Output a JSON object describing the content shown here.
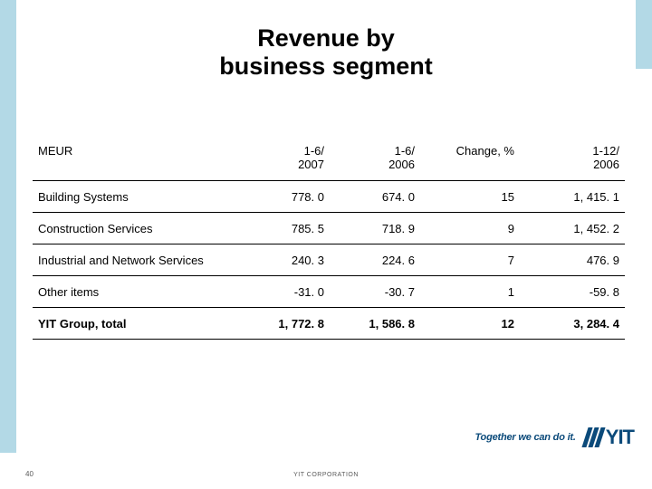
{
  "title_line1": "Revenue by",
  "title_line2": "business segment",
  "table": {
    "header": {
      "label": "MEUR",
      "col_a": "1-6/\n2007",
      "col_b": "1-6/\n2006",
      "col_c": "Change, %",
      "col_d": "1-12/\n2006"
    },
    "rows": [
      {
        "label": "Building Systems",
        "a": "778. 0",
        "b": "674. 0",
        "c": "15",
        "d": "1, 415. 1",
        "bold": false
      },
      {
        "label": "Construction Services",
        "a": "785. 5",
        "b": "718. 9",
        "c": "9",
        "d": "1, 452. 2",
        "bold": false
      },
      {
        "label": "Industrial and Network Services",
        "a": "240. 3",
        "b": "224. 6",
        "c": "7",
        "d": "476. 9",
        "bold": false
      },
      {
        "label": "Other items",
        "a": "-31. 0",
        "b": "-30. 7",
        "c": "1",
        "d": "-59. 8",
        "bold": false
      },
      {
        "label": "YIT Group, total",
        "a": "1, 772. 8",
        "b": "1, 586. 8",
        "c": "12",
        "d": "3, 284. 4",
        "bold": true
      }
    ]
  },
  "footer": {
    "page_number": "40",
    "credit": "YIT CORPORATION"
  },
  "brand": {
    "tagline": "Together we can do it.",
    "logo_text": "YIT"
  },
  "colors": {
    "background_tint": "#b3d9e6",
    "rule": "#0b4a7a",
    "brand": "#0b4a7a",
    "text": "#000000"
  }
}
